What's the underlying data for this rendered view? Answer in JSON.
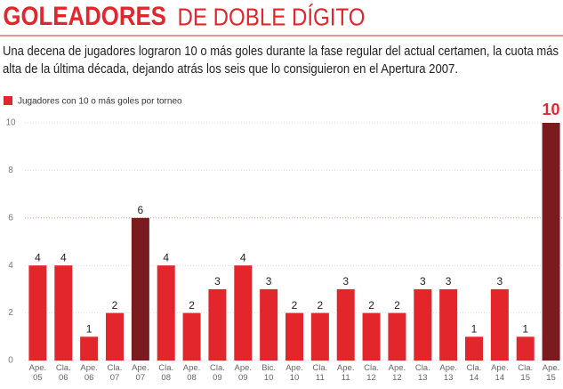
{
  "chart_data": {
    "type": "bar",
    "title": "GOLEADORES",
    "title_suffix": "DE DOBLE DÍGITO",
    "subtitle_lines": [
      "Una decena de jugadores lograron 10 o más goles durante la fase regular del actual certamen, la cuota más",
      "alta de la última década, dejando atrás los seis que lo consiguieron en el Apertura 2007."
    ],
    "legend": "Jugadores con 10 o más goles por torneo",
    "categories": [
      "Ape. 05",
      "Cla. 06",
      "Ape. 06",
      "Cla. 07",
      "Ape. 07",
      "Cla. 08",
      "Ape. 08",
      "Cla. 09",
      "Ape. 09",
      "Bic. 10",
      "Ape. 10",
      "Cla. 11",
      "Ape. 11",
      "Cla. 12",
      "Ape. 12",
      "Cla. 13",
      "Ape. 13",
      "Cla. 14",
      "Ape. 14",
      "Cla. 15",
      "Ape. 15"
    ],
    "values": [
      4,
      4,
      1,
      2,
      6,
      4,
      2,
      3,
      4,
      3,
      2,
      2,
      3,
      2,
      2,
      3,
      3,
      1,
      3,
      1,
      10
    ],
    "colors": [
      "#e3262b",
      "#e3262b",
      "#e3262b",
      "#e3262b",
      "#7a1b1f",
      "#e3262b",
      "#e3262b",
      "#e3262b",
      "#e3262b",
      "#e3262b",
      "#e3262b",
      "#e3262b",
      "#e3262b",
      "#e3262b",
      "#e3262b",
      "#e3262b",
      "#e3262b",
      "#e3262b",
      "#e3262b",
      "#e3262b",
      "#7a1b1f"
    ],
    "ylim": [
      0,
      10
    ],
    "yticks": [
      0,
      2,
      4,
      6,
      8,
      10
    ],
    "grid": true
  }
}
